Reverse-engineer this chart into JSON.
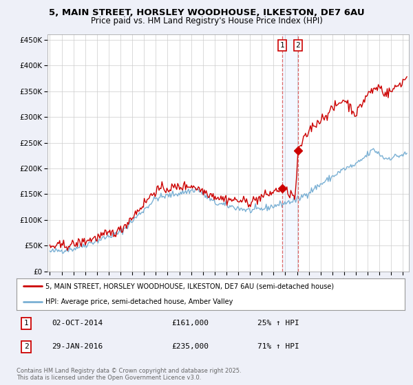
{
  "title_line1": "5, MAIN STREET, HORSLEY WOODHOUSE, ILKESTON, DE7 6AU",
  "title_line2": "Price paid vs. HM Land Registry's House Price Index (HPI)",
  "background_color": "#eef0f8",
  "plot_bg_color": "#ffffff",
  "red_line_color": "#cc0000",
  "blue_line_color": "#7ab0d4",
  "legend_line1": "5, MAIN STREET, HORSLEY WOODHOUSE, ILKESTON, DE7 6AU (semi-detached house)",
  "legend_line2": "HPI: Average price, semi-detached house, Amber Valley",
  "footer": "Contains HM Land Registry data © Crown copyright and database right 2025.\nThis data is licensed under the Open Government Licence v3.0.",
  "ylim": [
    0,
    460000
  ],
  "yticks": [
    0,
    50000,
    100000,
    150000,
    200000,
    250000,
    300000,
    350000,
    400000,
    450000
  ],
  "xlim_start": 1994.8,
  "xlim_end": 2025.5,
  "sale1_x": 2014.75,
  "sale1_y": 161000,
  "sale2_x": 2016.08,
  "sale2_y": 235000
}
